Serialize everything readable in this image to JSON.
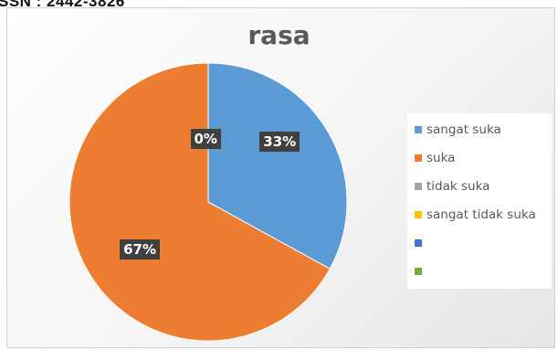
{
  "page": {
    "header_text": "SSN : 2442-3826"
  },
  "chart_data": {
    "type": "pie",
    "title": "rasa",
    "categories": [
      "sangat suka",
      "suka",
      "tidak suka",
      "sangat tidak suka",
      "",
      ""
    ],
    "values": [
      33,
      67,
      0,
      0,
      0,
      0
    ],
    "data_labels": [
      "33%",
      "67%",
      "0%",
      "",
      "",
      ""
    ],
    "colors": [
      "#5B9BD5",
      "#ED7D31",
      "#A5A5A5",
      "#FFC000",
      "#4472C4",
      "#70AD47"
    ],
    "legend_position": "right",
    "start_angle_deg": 0,
    "direction": "clockwise"
  }
}
